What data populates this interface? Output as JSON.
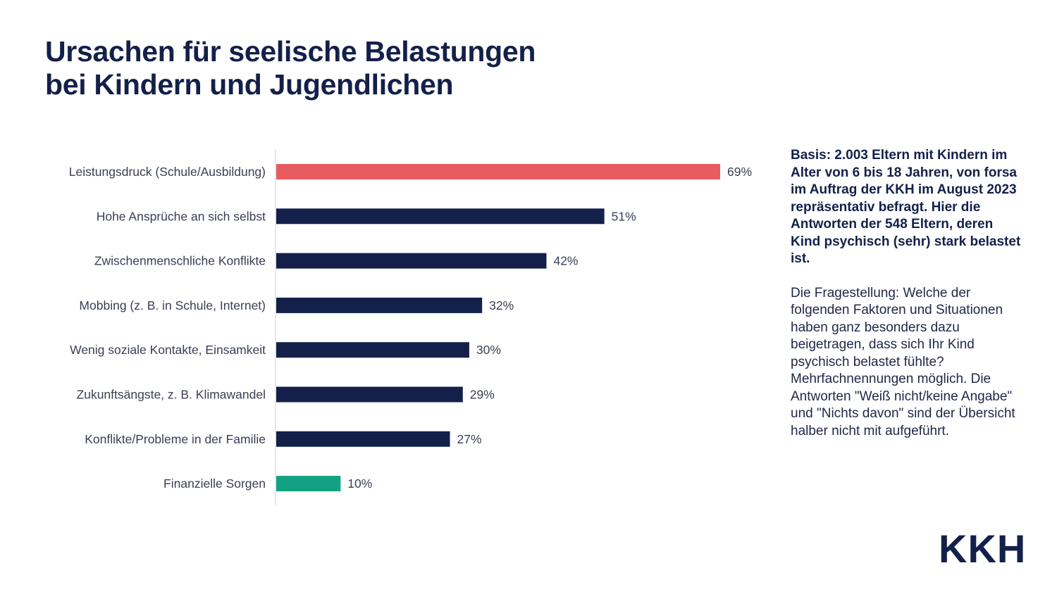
{
  "title": {
    "line1": "Ursachen für seelische Belastungen",
    "line2": "bei Kindern und Jugendlichen"
  },
  "chart_data": {
    "type": "bar",
    "orientation": "horizontal",
    "categories": [
      "Leistungsdruck (Schule/Ausbildung)",
      "Hohe Ansprüche an sich selbst",
      "Zwischenmenschliche Konflikte",
      "Mobbing (z. B. in Schule, Internet)",
      "Wenig soziale Kontakte, Einsamkeit",
      "Zukunftsängste, z. B. Klimawandel",
      "Konflikte/Probleme in der Familie",
      "Finanzielle Sorgen"
    ],
    "values": [
      69,
      51,
      42,
      32,
      30,
      29,
      27,
      10
    ],
    "value_labels": [
      "69%",
      "51%",
      "42%",
      "32%",
      "30%",
      "29%",
      "27%",
      "10%"
    ],
    "colors": [
      "#e85c60",
      "#13204a",
      "#13204a",
      "#13204a",
      "#13204a",
      "#13204a",
      "#13204a",
      "#12a283"
    ],
    "unit": "%",
    "xlim": [
      0,
      69
    ],
    "grid": false,
    "legend": "none"
  },
  "side": {
    "basis": "Basis: 2.003 Eltern mit Kindern im Alter von 6 bis 18 Jahren, von forsa im Auftrag der KKH im August 2023 repräsentativ befragt. Hier die Antworten der 548 Eltern, deren Kind psychisch (sehr) stark belastet ist.",
    "question": "Die Fragestellung: Welche der folgenden Faktoren und Situationen haben ganz besonders dazu beigetragen, dass sich Ihr Kind psychisch belastet fühlte? Mehrfachnennungen möglich. Die Antworten \"Weiß nicht/keine Angabe\" und \"Nichts davon\" sind der Übersicht halber nicht mit aufgeführt."
  },
  "logo": {
    "text": "KKH"
  },
  "colors": {
    "navy": "#13204a",
    "accent_red": "#e85c60",
    "accent_green": "#12a283"
  }
}
